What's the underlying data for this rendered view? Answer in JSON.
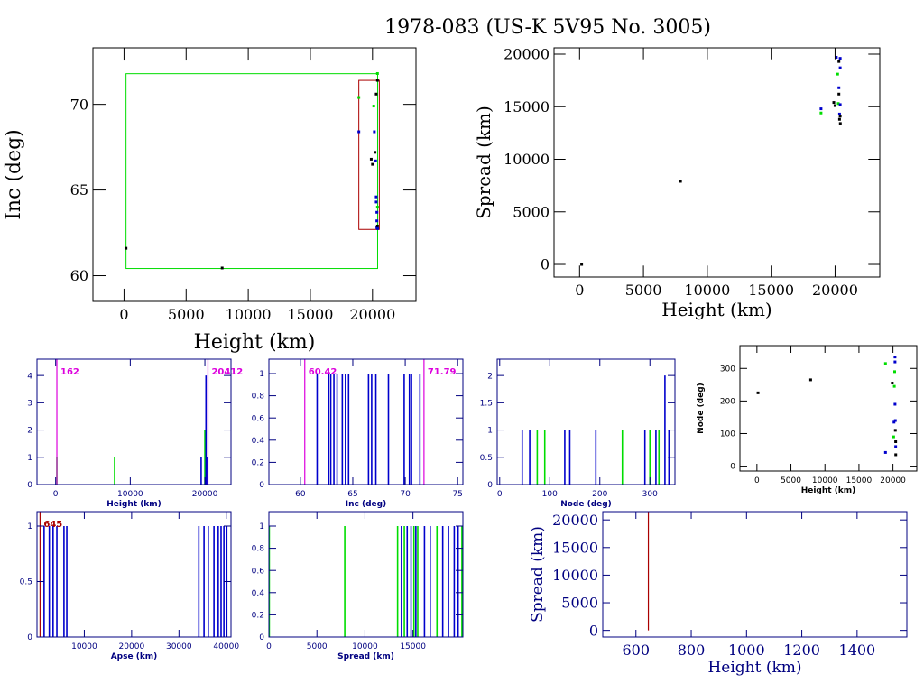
{
  "title": "1978-083 (US-K 5V95 No. 3005)",
  "colors": {
    "frame": "#000000",
    "navy": "#000080",
    "blue": "#0000cc",
    "green": "#00dd00",
    "magenta": "#dd00dd",
    "red": "#c00000",
    "darkred": "#aa0000"
  },
  "chart_data": [
    {
      "type": "scatter",
      "xlabel": "Height (km)",
      "ylabel": "Inc (deg)",
      "xlim": [
        -2500,
        23500
      ],
      "ylim": [
        58.5,
        73.3
      ],
      "xticks": [
        0,
        5000,
        10000,
        15000,
        20000
      ],
      "yticks": [
        60,
        65,
        70
      ],
      "boxes": [
        {
          "x0": 162,
          "x1": 20412,
          "y0": 60.42,
          "y1": 71.79,
          "color": "green"
        },
        {
          "x0": 18900,
          "x1": 20550,
          "y0": 62.7,
          "y1": 71.4,
          "color": "darkred"
        }
      ],
      "points": [
        {
          "x": 162,
          "y": 61.6,
          "c": "black"
        },
        {
          "x": 7900,
          "y": 60.45,
          "c": "black"
        },
        {
          "x": 18900,
          "y": 68.4,
          "c": "blue"
        },
        {
          "x": 18900,
          "y": 70.4,
          "c": "green"
        },
        {
          "x": 19900,
          "y": 66.8,
          "c": "black"
        },
        {
          "x": 20000,
          "y": 66.5,
          "c": "black"
        },
        {
          "x": 20100,
          "y": 69.9,
          "c": "green"
        },
        {
          "x": 20150,
          "y": 68.4,
          "c": "blue"
        },
        {
          "x": 20200,
          "y": 67.2,
          "c": "black"
        },
        {
          "x": 20250,
          "y": 66.7,
          "c": "blue"
        },
        {
          "x": 20300,
          "y": 70.6,
          "c": "black"
        },
        {
          "x": 20300,
          "y": 64.6,
          "c": "blue"
        },
        {
          "x": 20300,
          "y": 64.3,
          "c": "blue"
        },
        {
          "x": 20350,
          "y": 63.7,
          "c": "blue"
        },
        {
          "x": 20350,
          "y": 63.2,
          "c": "blue"
        },
        {
          "x": 20350,
          "y": 62.8,
          "c": "blue"
        },
        {
          "x": 20400,
          "y": 71.8,
          "c": "green"
        },
        {
          "x": 20400,
          "y": 71.4,
          "c": "black"
        },
        {
          "x": 20400,
          "y": 64.0,
          "c": "green"
        },
        {
          "x": 20400,
          "y": 62.9,
          "c": "black"
        },
        {
          "x": 20412,
          "y": 62.75,
          "c": "blue"
        }
      ]
    },
    {
      "type": "scatter",
      "xlabel": "Height (km)",
      "ylabel": "Spread (km)",
      "xlim": [
        -2000,
        23500
      ],
      "ylim": [
        -1200,
        20600
      ],
      "xticks": [
        0,
        5000,
        10000,
        15000,
        20000
      ],
      "yticks": [
        0,
        5000,
        10000,
        15000,
        20000
      ],
      "points": [
        {
          "x": 162,
          "y": 0,
          "c": "black"
        },
        {
          "x": 7900,
          "y": 7900,
          "c": "black"
        },
        {
          "x": 18900,
          "y": 14800,
          "c": "blue"
        },
        {
          "x": 18900,
          "y": 14400,
          "c": "green"
        },
        {
          "x": 19900,
          "y": 15400,
          "c": "black"
        },
        {
          "x": 20000,
          "y": 15100,
          "c": "black"
        },
        {
          "x": 20100,
          "y": 19700,
          "c": "blue"
        },
        {
          "x": 20200,
          "y": 18100,
          "c": "green"
        },
        {
          "x": 20250,
          "y": 15300,
          "c": "green"
        },
        {
          "x": 20300,
          "y": 19300,
          "c": "black"
        },
        {
          "x": 20300,
          "y": 16800,
          "c": "blue"
        },
        {
          "x": 20300,
          "y": 16200,
          "c": "black"
        },
        {
          "x": 20350,
          "y": 14300,
          "c": "blue"
        },
        {
          "x": 20350,
          "y": 13800,
          "c": "black"
        },
        {
          "x": 20400,
          "y": 19600,
          "c": "blue"
        },
        {
          "x": 20400,
          "y": 18700,
          "c": "blue"
        },
        {
          "x": 20400,
          "y": 15200,
          "c": "blue"
        },
        {
          "x": 20400,
          "y": 14100,
          "c": "black"
        },
        {
          "x": 20412,
          "y": 13400,
          "c": "black"
        }
      ]
    },
    {
      "type": "bar",
      "xlabel": "Height (km)",
      "ylabel": "",
      "xlim": [
        -2500,
        23500
      ],
      "ylim": [
        0,
        4.6
      ],
      "xticks": [
        0,
        10000,
        20000
      ],
      "yticks": [
        0,
        1,
        2,
        3,
        4
      ],
      "markers": [
        {
          "x": 162,
          "label": "162",
          "color": "magenta"
        },
        {
          "x": 20412,
          "label": "20412",
          "color": "magenta"
        }
      ],
      "bars": [
        {
          "x": 162,
          "h": 1,
          "c": "green"
        },
        {
          "x": 7900,
          "h": 1,
          "c": "green"
        },
        {
          "x": 19500,
          "h": 1,
          "c": "blue"
        },
        {
          "x": 20000,
          "h": 2,
          "c": "green"
        },
        {
          "x": 20150,
          "h": 4,
          "c": "blue"
        },
        {
          "x": 20300,
          "h": 1,
          "c": "blue"
        }
      ]
    },
    {
      "type": "bar",
      "xlabel": "Inc (deg)",
      "ylabel": "",
      "xlim": [
        57,
        75.5
      ],
      "ylim": [
        0,
        1.13
      ],
      "xticks": [
        60,
        65,
        70,
        75
      ],
      "yticks": [
        0,
        0.2,
        0.4,
        0.6,
        0.8,
        1
      ],
      "markers": [
        {
          "x": 60.42,
          "label": "60.42",
          "color": "magenta"
        },
        {
          "x": 71.79,
          "label": "71.79",
          "color": "magenta"
        }
      ],
      "bars": [
        {
          "x": 61.6,
          "h": 1,
          "c": "blue"
        },
        {
          "x": 62.7,
          "h": 1,
          "c": "blue"
        },
        {
          "x": 62.9,
          "h": 1,
          "c": "blue"
        },
        {
          "x": 63.2,
          "h": 1,
          "c": "blue"
        },
        {
          "x": 63.5,
          "h": 1,
          "c": "blue"
        },
        {
          "x": 64.0,
          "h": 1,
          "c": "blue"
        },
        {
          "x": 64.3,
          "h": 1,
          "c": "blue"
        },
        {
          "x": 64.6,
          "h": 1,
          "c": "blue"
        },
        {
          "x": 66.5,
          "h": 1,
          "c": "blue"
        },
        {
          "x": 66.8,
          "h": 1,
          "c": "blue"
        },
        {
          "x": 67.2,
          "h": 1,
          "c": "blue"
        },
        {
          "x": 68.4,
          "h": 1,
          "c": "blue"
        },
        {
          "x": 69.9,
          "h": 1,
          "c": "blue"
        },
        {
          "x": 70.4,
          "h": 1,
          "c": "blue"
        },
        {
          "x": 70.6,
          "h": 1,
          "c": "blue"
        },
        {
          "x": 71.4,
          "h": 1,
          "c": "blue"
        }
      ]
    },
    {
      "type": "bar",
      "xlabel": "Node (deg)",
      "ylabel": "",
      "xlim": [
        -5,
        350
      ],
      "ylim": [
        0,
        2.3
      ],
      "xticks": [
        0,
        100,
        200,
        300
      ],
      "yticks": [
        0,
        0.5,
        1,
        1.5,
        2
      ],
      "bars": [
        {
          "x": 45,
          "h": 1,
          "c": "blue"
        },
        {
          "x": 60,
          "h": 1,
          "c": "blue"
        },
        {
          "x": 75,
          "h": 1,
          "c": "green"
        },
        {
          "x": 90,
          "h": 1,
          "c": "green"
        },
        {
          "x": 130,
          "h": 1,
          "c": "blue"
        },
        {
          "x": 140,
          "h": 1,
          "c": "blue"
        },
        {
          "x": 192,
          "h": 1,
          "c": "blue"
        },
        {
          "x": 245,
          "h": 1,
          "c": "green"
        },
        {
          "x": 290,
          "h": 1,
          "c": "blue"
        },
        {
          "x": 300,
          "h": 1,
          "c": "green"
        },
        {
          "x": 312,
          "h": 1,
          "c": "blue"
        },
        {
          "x": 318,
          "h": 1,
          "c": "green"
        },
        {
          "x": 330,
          "h": 2,
          "c": "blue"
        },
        {
          "x": 338,
          "h": 1,
          "c": "blue"
        }
      ]
    },
    {
      "type": "scatter",
      "xlabel": "Height (km)",
      "ylabel": "Node (deg)",
      "xlim": [
        -2500,
        23500
      ],
      "ylim": [
        -15,
        370
      ],
      "xticks": [
        0,
        5000,
        10000,
        15000,
        20000
      ],
      "yticks": [
        0,
        100,
        200,
        300
      ],
      "points": [
        {
          "x": 162,
          "y": 225,
          "c": "black"
        },
        {
          "x": 7900,
          "y": 265,
          "c": "black"
        },
        {
          "x": 18900,
          "y": 42,
          "c": "blue"
        },
        {
          "x": 18900,
          "y": 315,
          "c": "green"
        },
        {
          "x": 19900,
          "y": 255,
          "c": "black"
        },
        {
          "x": 20100,
          "y": 90,
          "c": "green"
        },
        {
          "x": 20150,
          "y": 135,
          "c": "blue"
        },
        {
          "x": 20200,
          "y": 245,
          "c": "green"
        },
        {
          "x": 20250,
          "y": 290,
          "c": "green"
        },
        {
          "x": 20300,
          "y": 335,
          "c": "blue"
        },
        {
          "x": 20300,
          "y": 320,
          "c": "blue"
        },
        {
          "x": 20300,
          "y": 190,
          "c": "blue"
        },
        {
          "x": 20350,
          "y": 140,
          "c": "blue"
        },
        {
          "x": 20350,
          "y": 110,
          "c": "black"
        },
        {
          "x": 20400,
          "y": 75,
          "c": "black"
        },
        {
          "x": 20400,
          "y": 60,
          "c": "blue"
        },
        {
          "x": 20412,
          "y": 35,
          "c": "black"
        }
      ]
    },
    {
      "type": "bar",
      "xlabel": "Apse (km)",
      "ylabel": "",
      "xlim": [
        0,
        41000
      ],
      "ylim": [
        0,
        1.13
      ],
      "xticks": [
        10000,
        20000,
        30000,
        40000
      ],
      "yticks": [
        0,
        0.5,
        1
      ],
      "markers": [
        {
          "x": 645,
          "label": "645",
          "color": "darkred"
        }
      ],
      "bars": [
        {
          "x": 1500,
          "h": 1,
          "c": "blue"
        },
        {
          "x": 2600,
          "h": 1,
          "c": "blue"
        },
        {
          "x": 3400,
          "h": 1,
          "c": "blue"
        },
        {
          "x": 4200,
          "h": 1,
          "c": "blue"
        },
        {
          "x": 5700,
          "h": 1,
          "c": "blue"
        },
        {
          "x": 6300,
          "h": 1,
          "c": "blue"
        },
        {
          "x": 34200,
          "h": 1,
          "c": "blue"
        },
        {
          "x": 35300,
          "h": 1,
          "c": "blue"
        },
        {
          "x": 36200,
          "h": 1,
          "c": "blue"
        },
        {
          "x": 37400,
          "h": 1,
          "c": "blue"
        },
        {
          "x": 38300,
          "h": 1,
          "c": "blue"
        },
        {
          "x": 38900,
          "h": 1,
          "c": "blue"
        },
        {
          "x": 39500,
          "h": 1,
          "c": "blue"
        },
        {
          "x": 40100,
          "h": 1,
          "c": "blue"
        }
      ]
    },
    {
      "type": "bar",
      "xlabel": "Spread (km)",
      "ylabel": "",
      "xlim": [
        0,
        20200
      ],
      "ylim": [
        0,
        1.13
      ],
      "xticks": [
        0,
        5000,
        10000,
        15000
      ],
      "yticks": [
        0,
        0.2,
        0.4,
        0.6,
        0.8,
        1
      ],
      "bars": [
        {
          "x": 40,
          "h": 1,
          "c": "green"
        },
        {
          "x": 7900,
          "h": 1,
          "c": "green"
        },
        {
          "x": 13400,
          "h": 1,
          "c": "green"
        },
        {
          "x": 13800,
          "h": 1,
          "c": "blue"
        },
        {
          "x": 14100,
          "h": 1,
          "c": "green"
        },
        {
          "x": 14400,
          "h": 1,
          "c": "blue"
        },
        {
          "x": 14800,
          "h": 1,
          "c": "blue"
        },
        {
          "x": 15100,
          "h": 1,
          "c": "green"
        },
        {
          "x": 15300,
          "h": 1,
          "c": "blue"
        },
        {
          "x": 15500,
          "h": 1,
          "c": "green"
        },
        {
          "x": 16200,
          "h": 1,
          "c": "blue"
        },
        {
          "x": 16800,
          "h": 1,
          "c": "blue"
        },
        {
          "x": 17500,
          "h": 1,
          "c": "green"
        },
        {
          "x": 18100,
          "h": 1,
          "c": "blue"
        },
        {
          "x": 18700,
          "h": 1,
          "c": "blue"
        },
        {
          "x": 19300,
          "h": 1,
          "c": "blue"
        },
        {
          "x": 19700,
          "h": 1,
          "c": "blue"
        },
        {
          "x": 20100,
          "h": 1,
          "c": "green"
        }
      ]
    },
    {
      "type": "line",
      "xlabel": "Height (km)",
      "ylabel": "Spread (km)",
      "xlim": [
        480,
        1580
      ],
      "ylim": [
        -1200,
        21500
      ],
      "xticks": [
        600,
        800,
        1000,
        1200,
        1400
      ],
      "yticks": [
        0,
        5000,
        10000,
        15000,
        20000
      ],
      "vlines": [
        {
          "x": 645,
          "y0": 0,
          "y1": 21500,
          "color": "darkred"
        }
      ]
    }
  ]
}
